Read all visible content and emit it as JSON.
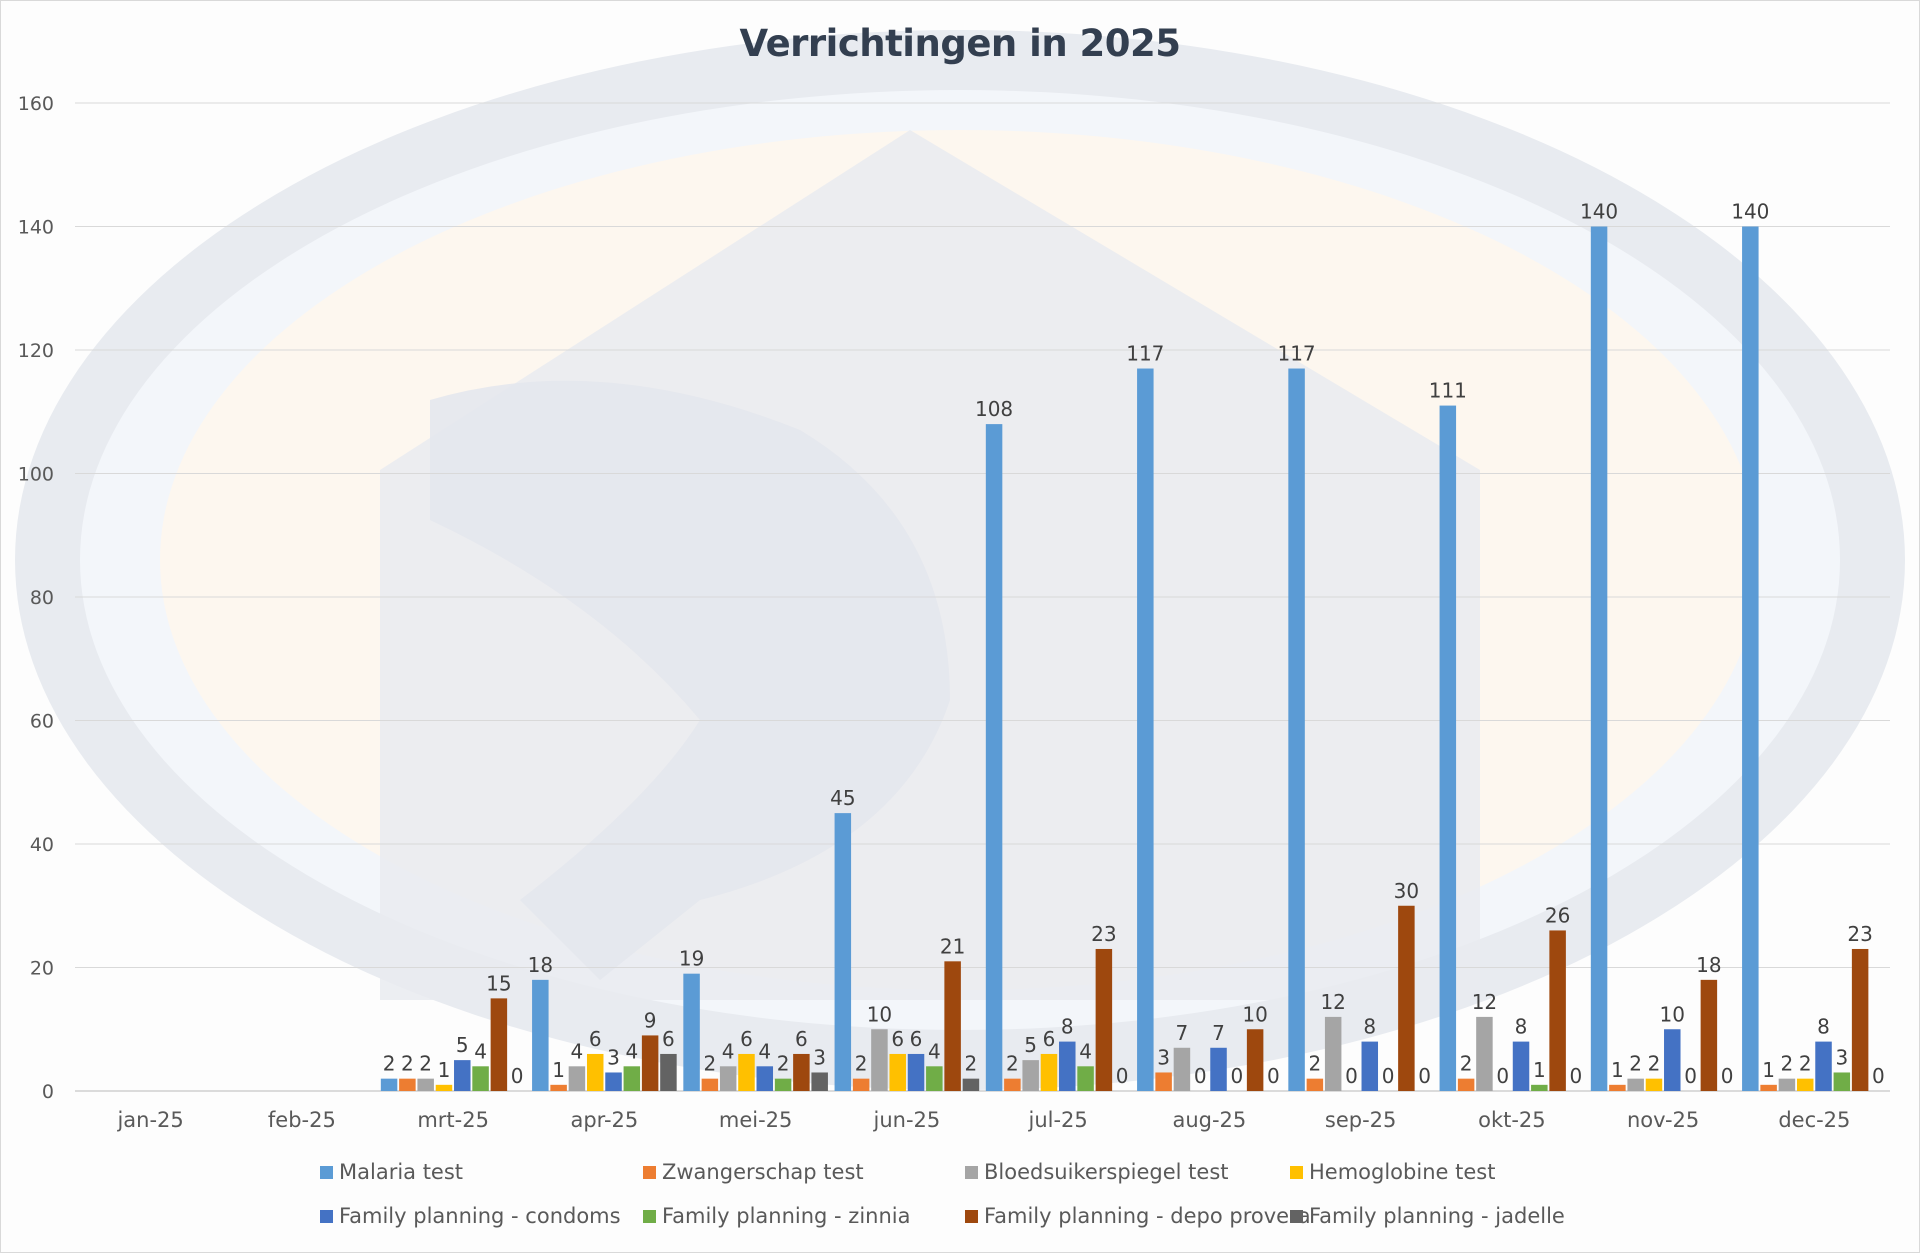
{
  "chart_data": {
    "type": "bar",
    "title": "Verrichtingen in 2025",
    "xlabel": "",
    "ylabel": "",
    "ylim": [
      0,
      160
    ],
    "yticks": [
      0,
      20,
      40,
      60,
      80,
      100,
      120,
      140,
      160
    ],
    "grid": true,
    "legend_position": "bottom",
    "data_labels": true,
    "categories": [
      "jan-25",
      "feb-25",
      "mrt-25",
      "apr-25",
      "mei-25",
      "jun-25",
      "jul-25",
      "aug-25",
      "sep-25",
      "okt-25",
      "nov-25",
      "dec-25"
    ],
    "series": [
      {
        "name": "Malaria test",
        "color": "#5b9bd5",
        "values": [
          null,
          null,
          2,
          18,
          19,
          45,
          108,
          117,
          117,
          111,
          140,
          140
        ]
      },
      {
        "name": "Zwangerschap test",
        "color": "#ed7d31",
        "values": [
          null,
          null,
          2,
          1,
          2,
          2,
          2,
          3,
          2,
          2,
          1,
          1
        ]
      },
      {
        "name": "Bloedsuikerspiegel test",
        "color": "#a5a5a5",
        "values": [
          null,
          null,
          2,
          4,
          4,
          10,
          5,
          7,
          12,
          12,
          2,
          2
        ]
      },
      {
        "name": "Hemoglobine test",
        "color": "#ffc000",
        "values": [
          null,
          null,
          1,
          6,
          6,
          6,
          6,
          0,
          0,
          0,
          2,
          2
        ]
      },
      {
        "name": "Family planning - condoms",
        "color": "#4472c4",
        "values": [
          null,
          null,
          5,
          3,
          4,
          6,
          8,
          7,
          8,
          8,
          10,
          8
        ]
      },
      {
        "name": "Family planning - zinnia",
        "color": "#70ad47",
        "values": [
          null,
          null,
          4,
          4,
          2,
          4,
          4,
          0,
          0,
          1,
          0,
          3
        ]
      },
      {
        "name": "Family planning - depo provera",
        "color": "#9e480e",
        "values": [
          null,
          null,
          15,
          9,
          6,
          21,
          23,
          10,
          30,
          26,
          18,
          23
        ]
      },
      {
        "name": "Family planning - jadelle",
        "color": "#636363",
        "values": [
          null,
          null,
          0,
          6,
          3,
          2,
          0,
          0,
          0,
          0,
          0,
          0
        ]
      }
    ]
  }
}
